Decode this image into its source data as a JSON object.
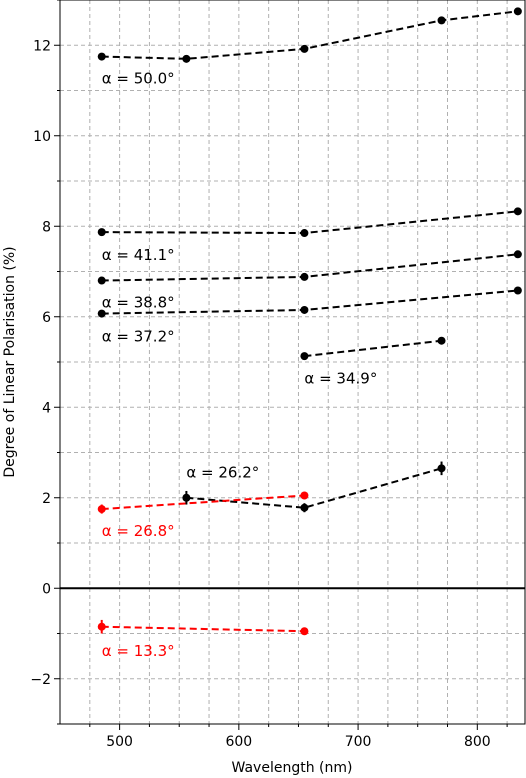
{
  "chart_data": {
    "type": "line",
    "xlabel": "Wavelength (nm)",
    "ylabel": "Degree of Linear Polarisation (%)",
    "xlim": [
      450,
      840
    ],
    "ylim": [
      -3,
      13
    ],
    "x_ticks": [
      500,
      600,
      700,
      800
    ],
    "y_ticks": [
      -2,
      0,
      2,
      4,
      6,
      8,
      10,
      12
    ],
    "x_minor_ticks": [
      475,
      525,
      550,
      575,
      625,
      650,
      675,
      725,
      750,
      775,
      825
    ],
    "y_minor_ticks": [
      -3,
      -1,
      1,
      3,
      5,
      7,
      9,
      11,
      13
    ],
    "grid": true,
    "grid_style": "dashed",
    "zero_line": true,
    "series": [
      {
        "color": "#000000",
        "points": [
          {
            "x": 485,
            "y": 11.75
          },
          {
            "x": 556,
            "y": 11.7
          },
          {
            "x": 655,
            "y": 11.92
          },
          {
            "x": 770,
            "y": 12.55
          },
          {
            "x": 834,
            "y": 12.75
          }
        ],
        "annotation": {
          "text": "α = 50.0°",
          "x": 485,
          "y": 11.15
        }
      },
      {
        "color": "#000000",
        "points": [
          {
            "x": 485,
            "y": 7.87
          },
          {
            "x": 655,
            "y": 7.85
          },
          {
            "x": 834,
            "y": 8.33
          }
        ],
        "annotation": {
          "text": "α = 41.1°",
          "x": 485,
          "y": 7.25
        }
      },
      {
        "color": "#000000",
        "points": [
          {
            "x": 485,
            "y": 6.8
          },
          {
            "x": 655,
            "y": 6.88
          },
          {
            "x": 834,
            "y": 7.38
          }
        ],
        "annotation": {
          "text": "α = 38.8°",
          "x": 485,
          "y": 6.2
        }
      },
      {
        "color": "#000000",
        "points": [
          {
            "x": 485,
            "y": 6.07
          },
          {
            "x": 655,
            "y": 6.15
          },
          {
            "x": 834,
            "y": 6.58
          }
        ],
        "annotation": {
          "text": "α = 37.2°",
          "x": 485,
          "y": 5.45
        }
      },
      {
        "color": "#000000",
        "points": [
          {
            "x": 655,
            "y": 5.13
          },
          {
            "x": 770,
            "y": 5.47
          }
        ],
        "annotation": {
          "text": "α = 34.9°",
          "x": 655,
          "y": 4.52
        }
      },
      {
        "color": "#000000",
        "points": [
          {
            "x": 556,
            "y": 2.0,
            "err": 0.15
          },
          {
            "x": 655,
            "y": 1.78,
            "err": 0.1
          },
          {
            "x": 770,
            "y": 2.65,
            "err": 0.15
          }
        ],
        "annotation": {
          "text": "α = 26.2°",
          "x": 556,
          "y": 2.45
        }
      },
      {
        "color": "#ff0000",
        "points": [
          {
            "x": 485,
            "y": 1.75,
            "err": 0.1
          },
          {
            "x": 655,
            "y": 2.05
          }
        ],
        "annotation": {
          "text": "α = 26.8°",
          "x": 485,
          "y": 1.15
        }
      },
      {
        "color": "#ff0000",
        "points": [
          {
            "x": 485,
            "y": -0.85,
            "err": 0.15
          },
          {
            "x": 655,
            "y": -0.95
          }
        ],
        "annotation": {
          "text": "α = 13.3°",
          "x": 485,
          "y": -1.5
        }
      }
    ]
  }
}
